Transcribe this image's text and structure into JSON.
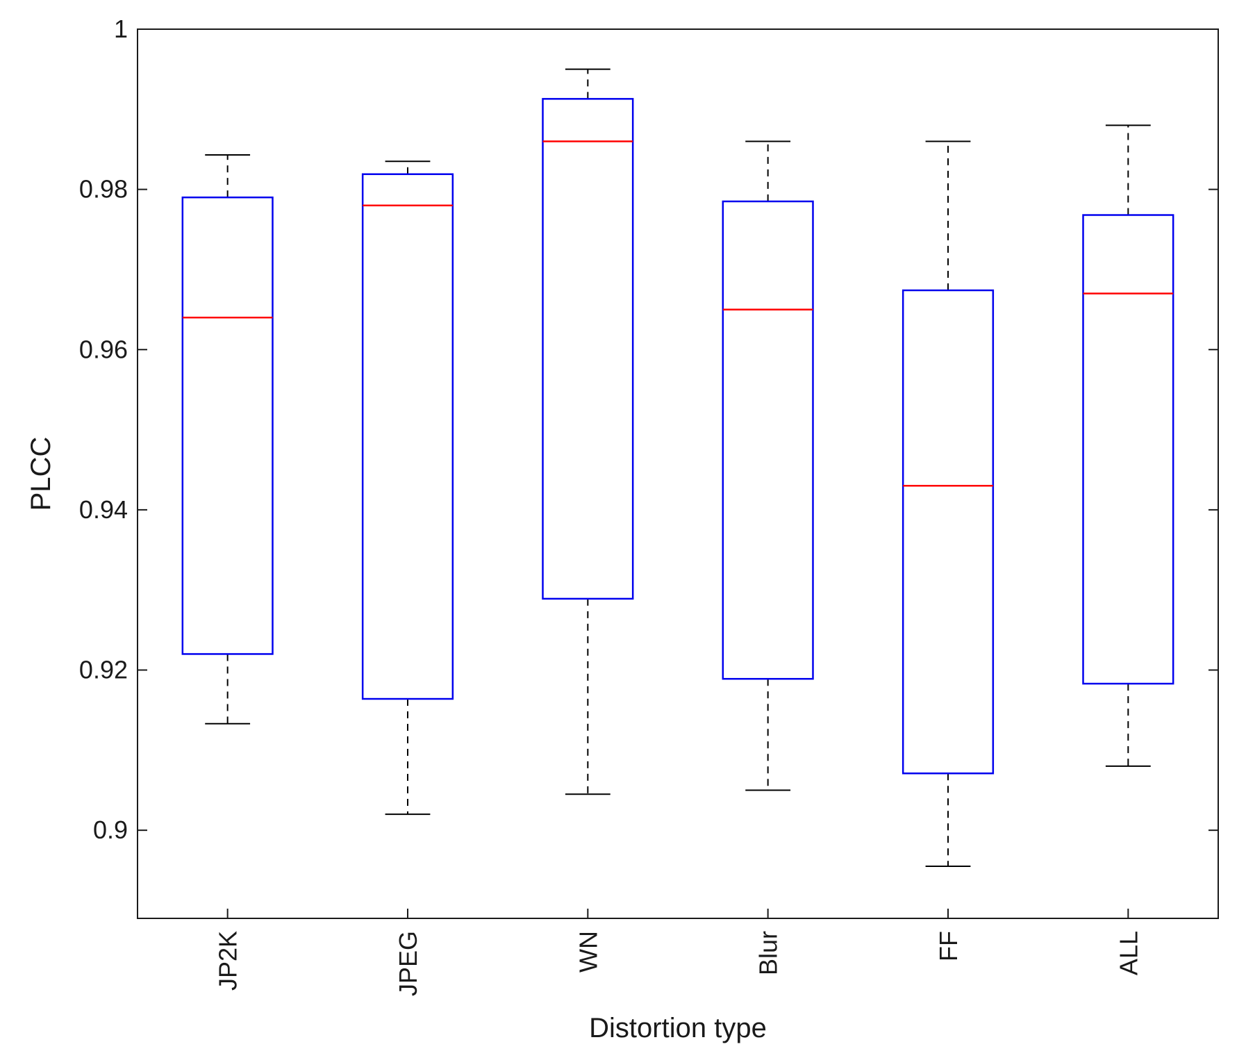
{
  "chart_data": {
    "type": "boxplot",
    "title": "",
    "xlabel": "Distortion type",
    "ylabel": "PLCC",
    "ylim": [
      0.889,
      1.0
    ],
    "yticks": [
      0.9,
      0.92,
      0.94,
      0.96,
      0.98,
      1
    ],
    "ytick_labels": [
      "0.9",
      "0.92",
      "0.94",
      "0.96",
      "0.98",
      "1"
    ],
    "categories": [
      "JP2K",
      "JPEG",
      "WN",
      "Blur",
      "FF",
      "ALL"
    ],
    "boxes": [
      {
        "category": "JP2K",
        "whisker_low": 0.9133,
        "q1": 0.922,
        "median": 0.964,
        "q3": 0.979,
        "whisker_high": 0.9843
      },
      {
        "category": "JPEG",
        "whisker_low": 0.902,
        "q1": 0.9164,
        "median": 0.978,
        "q3": 0.9819,
        "whisker_high": 0.9835
      },
      {
        "category": "WN",
        "whisker_low": 0.9045,
        "q1": 0.9289,
        "median": 0.986,
        "q3": 0.9913,
        "whisker_high": 0.995
      },
      {
        "category": "Blur",
        "whisker_low": 0.905,
        "q1": 0.9189,
        "median": 0.965,
        "q3": 0.9785,
        "whisker_high": 0.986
      },
      {
        "category": "FF",
        "whisker_low": 0.8955,
        "q1": 0.9071,
        "median": 0.943,
        "q3": 0.9674,
        "whisker_high": 0.986
      },
      {
        "category": "ALL",
        "whisker_low": 0.908,
        "q1": 0.9183,
        "median": 0.967,
        "q3": 0.9768,
        "whisker_high": 0.988
      }
    ],
    "colors": {
      "box": "#0000ee",
      "median": "#ff0000",
      "whisker": "#000000",
      "axis": "#1a1a1a"
    },
    "grid": false,
    "legend": "none"
  }
}
